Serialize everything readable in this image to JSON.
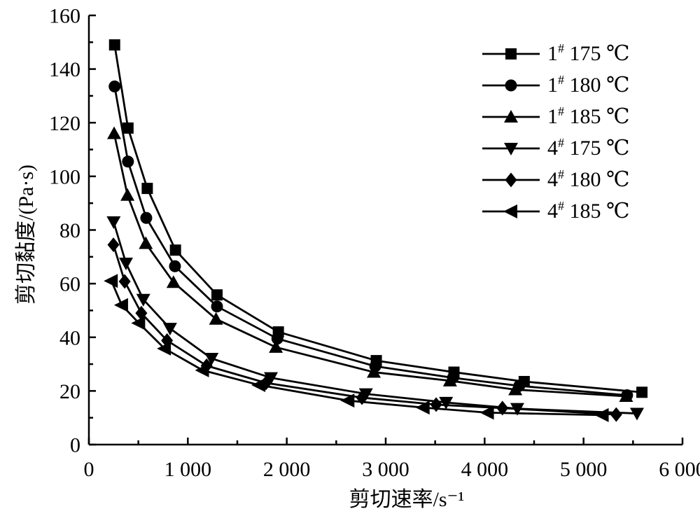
{
  "figure": {
    "background": "#ffffff",
    "ink": "#000000"
  },
  "chart_data": {
    "type": "line",
    "title": "",
    "xlabel": "剪切速率/s⁻¹",
    "ylabel": "剪切黏度/(Pa·s)",
    "xlim": [
      0,
      6000
    ],
    "ylim": [
      0,
      160
    ],
    "grid": false,
    "legend_position": "top-right-inside",
    "x_major_ticks": [
      0,
      1000,
      2000,
      3000,
      4000,
      5000,
      6000
    ],
    "x_tick_labels": [
      "0",
      "1 000",
      "2 000",
      "3 000",
      "4 000",
      "5 000",
      "6 000"
    ],
    "x_minor_step": 500,
    "y_major_ticks": [
      0,
      20,
      40,
      60,
      80,
      100,
      120,
      140,
      160
    ],
    "y_tick_labels": [
      "0",
      "20",
      "40",
      "60",
      "80",
      "100",
      "120",
      "140",
      "160"
    ],
    "y_minor_step": 10,
    "series": [
      {
        "label": "1# 175 ℃",
        "sample": "1",
        "sup": "#",
        "temp": "175 ℃",
        "marker": "square",
        "x": [
          260,
          395,
          590,
          875,
          1295,
          1915,
          2905,
          3690,
          4400,
          5590
        ],
        "y": [
          149,
          118,
          95.5,
          72.5,
          55.8,
          42,
          31.3,
          27,
          23.5,
          19.5
        ]
      },
      {
        "label": "1# 180 ℃",
        "sample": "1",
        "sup": "#",
        "temp": "180 ℃",
        "marker": "circle",
        "x": [
          260,
          395,
          580,
          870,
          1295,
          1905,
          2895,
          3680,
          4350,
          5440
        ],
        "y": [
          133.5,
          105.5,
          84.5,
          66.5,
          51.5,
          39.5,
          29.2,
          24.9,
          21.9,
          18.4
        ]
      },
      {
        "label": "1# 185 ℃",
        "sample": "1",
        "sup": "#",
        "temp": "185 ℃",
        "marker": "triangle-up",
        "x": [
          255,
          390,
          575,
          855,
          1285,
          1890,
          2880,
          3650,
          4310,
          5430
        ],
        "y": [
          116,
          93,
          75,
          60.5,
          46.8,
          36.3,
          27,
          23.8,
          20.5,
          18
        ]
      },
      {
        "label": "4# 175 ℃",
        "sample": "4",
        "sup": "#",
        "temp": "175 ℃",
        "marker": "triangle-down",
        "x": [
          250,
          375,
          550,
          820,
          1240,
          1840,
          2800,
          3610,
          4330,
          5540
        ],
        "y": [
          83,
          67.6,
          54.1,
          43.3,
          32.1,
          24.9,
          18.9,
          15.7,
          13.4,
          11.6
        ]
      },
      {
        "label": "4# 180 ℃",
        "sample": "4",
        "sup": "#",
        "temp": "180 ℃",
        "marker": "diamond",
        "x": [
          248,
          362,
          530,
          790,
          1190,
          1790,
          2760,
          3510,
          4180,
          5330
        ],
        "y": [
          74.5,
          60.8,
          49,
          38.8,
          29.4,
          23,
          17.5,
          14.9,
          13.6,
          11.2
        ]
      },
      {
        "label": "4# 185 ℃",
        "sample": "4",
        "sup": "#",
        "temp": "185 ℃",
        "marker": "triangle-left",
        "x": [
          228,
          332,
          505,
          765,
          1150,
          1720,
          2620,
          3380,
          4030,
          5190
        ],
        "y": [
          61,
          52,
          45.3,
          35.8,
          27.7,
          22.2,
          16.4,
          13.8,
          11.9,
          11
        ]
      }
    ]
  }
}
